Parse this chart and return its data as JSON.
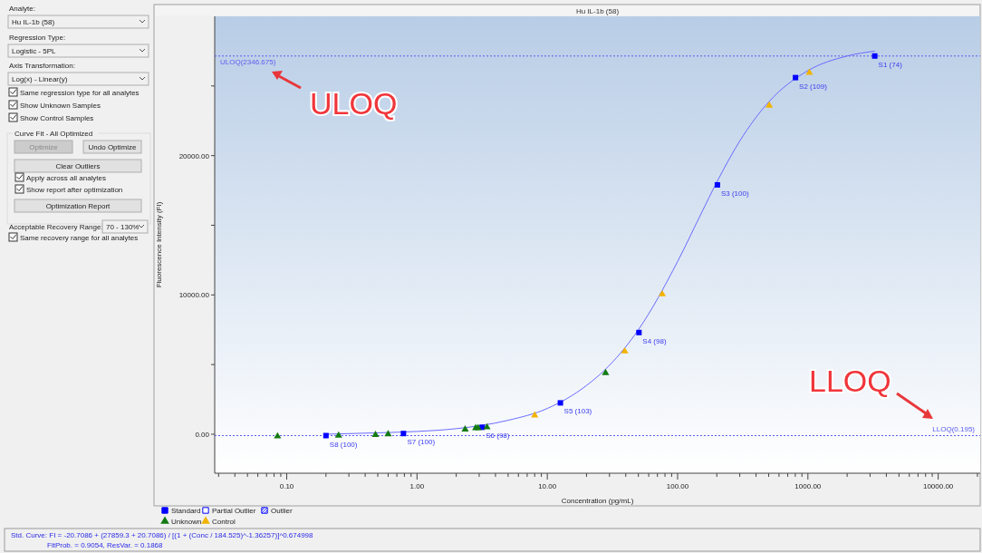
{
  "chart_data": [
    {
      "type": "other",
      "annotations": [
        "Analyte:",
        "Hu IL-1b (58)",
        "Regression Type:",
        "Logistic - 5PL",
        "Axis Transformation:",
        "Log(x) - Linear(y)",
        "Same regression type for all analytes",
        "Show Unknown Samples",
        "Show Control Samples",
        "Curve Fit - All Optimized",
        "Optimize",
        "Undo Optimize",
        "Clear Outliers",
        "Apply across all analytes",
        "Show report after optimization",
        "Optimization Report",
        "Acceptable Recovery Range:",
        "70 - 130%",
        "Same recovery range for all analytes"
      ]
    },
    {
      "type": "scatter",
      "title": "Hu IL-1b (58)",
      "xlabel": "Concentration (pg/mL)",
      "ylabel": "Fluorescence Intensity (FI)",
      "log": "x",
      "grid": false,
      "legend": "bottom",
      "xlim": [
        0.028,
        21000
      ],
      "xticks": [
        {
          "value": 0.03,
          "label": null
        },
        {
          "value": 0.04,
          "label": null
        },
        {
          "value": 0.05,
          "label": null
        },
        {
          "value": 0.06,
          "label": null
        },
        {
          "value": 0.07,
          "label": null
        },
        {
          "value": 0.08,
          "label": null
        },
        {
          "value": 0.09,
          "label": null
        },
        {
          "value": 0.1,
          "label": "0.10"
        },
        {
          "value": 0.2,
          "label": null
        },
        {
          "value": 0.3,
          "label": null
        },
        {
          "value": 0.4,
          "label": null
        },
        {
          "value": 0.5,
          "label": null
        },
        {
          "value": 0.6,
          "label": null
        },
        {
          "value": 0.7,
          "label": null
        },
        {
          "value": 0.8,
          "label": null
        },
        {
          "value": 0.9,
          "label": null
        },
        {
          "value": 1,
          "label": "1.00"
        },
        {
          "value": 2,
          "label": null
        },
        {
          "value": 3,
          "label": null
        },
        {
          "value": 4,
          "label": null
        },
        {
          "value": 5,
          "label": null
        },
        {
          "value": 6,
          "label": null
        },
        {
          "value": 7,
          "label": null
        },
        {
          "value": 8,
          "label": null
        },
        {
          "value": 9,
          "label": null
        },
        {
          "value": 10,
          "label": "10.00"
        },
        {
          "value": 20,
          "label": null
        },
        {
          "value": 30,
          "label": null
        },
        {
          "value": 40,
          "label": null
        },
        {
          "value": 50,
          "label": null
        },
        {
          "value": 60,
          "label": null
        },
        {
          "value": 70,
          "label": null
        },
        {
          "value": 80,
          "label": null
        },
        {
          "value": 90,
          "label": null
        },
        {
          "value": 100,
          "label": "100.00"
        },
        {
          "value": 200,
          "label": null
        },
        {
          "value": 300,
          "label": null
        },
        {
          "value": 400,
          "label": null
        },
        {
          "value": 500,
          "label": null
        },
        {
          "value": 600,
          "label": null
        },
        {
          "value": 700,
          "label": null
        },
        {
          "value": 800,
          "label": null
        },
        {
          "value": 900,
          "label": null
        },
        {
          "value": 1000,
          "label": "1000.00"
        },
        {
          "value": 2000,
          "label": null
        },
        {
          "value": 3000,
          "label": null
        },
        {
          "value": 4000,
          "label": null
        },
        {
          "value": 5000,
          "label": null
        },
        {
          "value": 6000,
          "label": null
        },
        {
          "value": 7000,
          "label": null
        },
        {
          "value": 8000,
          "label": null
        },
        {
          "value": 9000,
          "label": null
        },
        {
          "value": 10000,
          "label": "10000.00"
        },
        {
          "value": 20000,
          "label": null
        }
      ],
      "ylim": [
        -2800,
        30000
      ],
      "yticks": [
        {
          "value": 0,
          "label": "0.00"
        },
        {
          "value": 5000,
          "label": null
        },
        {
          "value": 10000,
          "label": "10000.00"
        },
        {
          "value": 15000,
          "label": null
        },
        {
          "value": 20000,
          "label": "20000.00"
        },
        {
          "value": 25000,
          "label": null
        }
      ],
      "series": [
        {
          "type": "line",
          "color": "#6b6bff",
          "line_style": "solid",
          "x": [
            0.2,
            0.5,
            1,
            2,
            5,
            10,
            20,
            30,
            50,
            100,
            150,
            200,
            300,
            500,
            1000,
            2000,
            3258
          ],
          "values": [
            0,
            100,
            200,
            400,
            1000,
            1850,
            3500,
            4950,
            7500,
            12400,
            15750,
            18100,
            21050,
            23850,
            26100,
            27150,
            27500
          ]
        },
        {
          "name": "Standard",
          "color": "#0000ff",
          "marker": "square",
          "x": [
            3258,
            803,
            202,
            50.5,
            12.6,
            3.16,
            0.787,
            0.2
          ],
          "values": [
            27150,
            25600,
            17900,
            7300,
            2250,
            500,
            50,
            -100
          ],
          "value_labels": [
            "S1 (74)",
            "S2 (109)",
            "S3 (100)",
            "S4 (98)",
            "S5 (103)",
            "S6 (98)",
            "S7 (100)",
            "S8 (100)"
          ]
        },
        {
          "name": "Partial Outlier",
          "color": "#0000ff",
          "marker": "square"
        },
        {
          "name": "Outlier",
          "color": "#0000ff",
          "marker": "square"
        },
        {
          "name": "Unknown",
          "color": "#137a13",
          "marker": "triangle",
          "x": [
            0.085,
            0.25,
            0.48,
            0.6,
            2.34,
            2.82,
            2.94,
            3.44,
            28
          ],
          "values": [
            -150,
            -100,
            -50,
            0,
            350,
            450,
            450,
            500,
            4400
          ]
        },
        {
          "name": "Control",
          "color": "#f2b300",
          "marker": "triangle",
          "x": [
            8.0,
            39.3,
            76.2,
            505,
            1026
          ],
          "values": [
            1350,
            5950,
            10050,
            23600,
            25950
          ]
        }
      ],
      "ref_lines": [
        {
          "axis": "y",
          "value": 27150,
          "label": "ULOQ(2346.675)",
          "color": "#5c5cf0",
          "line_style": "dotted"
        },
        {
          "axis": "y",
          "value": -100,
          "label": "LLOQ(0.195)",
          "color": "#5c5cf0",
          "line_style": "dotted"
        }
      ],
      "annotations": [
        "ULOQ",
        "LLOQ",
        "Std. Curve: FI = -20.7086 + (27859.3 + 20.7086) / [(1 + (Conc / 184.525)^-1.36257)]^0.674998",
        "FitProb. = 0.9054, ResVar. = 0.1868"
      ]
    }
  ]
}
